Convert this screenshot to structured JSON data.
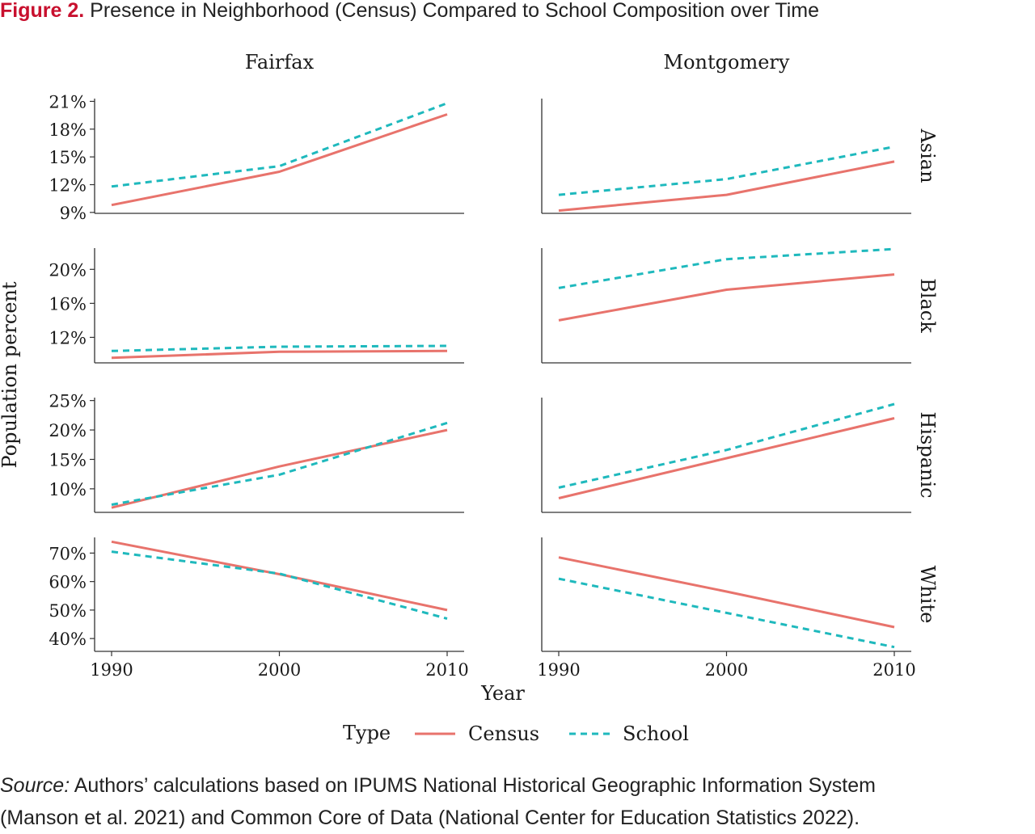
{
  "figure": {
    "label": "Figure 2.",
    "title": "Presence in Neighborhood (Census) Compared to School Composition over Time"
  },
  "source": {
    "label": "Source:",
    "line1": "Authors’ calculations based on IPUMS National Historical Geographic Information System",
    "line2": "(Manson et al. 2021) and Common Core of Data (National Center for Education Statistics 2022)."
  },
  "chart_data": {
    "type": "line",
    "ylabel": "Population percent",
    "xlabel": "Year",
    "x": [
      1990,
      2000,
      2010
    ],
    "x_tick_labels": [
      "1990",
      "2000",
      "2010"
    ],
    "columns": [
      "Fairfax",
      "Montgomery"
    ],
    "rows": [
      "Asian",
      "Black",
      "Hispanic",
      "White"
    ],
    "legend": {
      "title": "Type",
      "position": "bottom",
      "items": [
        {
          "name": "Census",
          "color": "#e8736c",
          "style": "solid"
        },
        {
          "name": "School",
          "color": "#1fb9bd",
          "style": "dashed"
        }
      ]
    },
    "grid": false,
    "panels": [
      {
        "row": "Asian",
        "ylim": [
          8.9,
          21.3
        ],
        "yticks": [
          9,
          12,
          15,
          18,
          21
        ],
        "ytick_labels": [
          "9%",
          "12%",
          "15%",
          "18%",
          "21%"
        ],
        "Fairfax": {
          "Census": [
            9.8,
            13.4,
            19.6
          ],
          "School": [
            11.8,
            14.0,
            20.8
          ]
        },
        "Montgomery": {
          "Census": [
            9.2,
            10.9,
            14.5
          ],
          "School": [
            10.9,
            12.6,
            16.1
          ]
        }
      },
      {
        "row": "Black",
        "ylim": [
          9.0,
          22.5
        ],
        "yticks": [
          12,
          16,
          20
        ],
        "ytick_labels": [
          "12%",
          "16%",
          "20%"
        ],
        "Fairfax": {
          "Census": [
            9.6,
            10.3,
            10.4
          ],
          "School": [
            10.4,
            10.9,
            11.0
          ]
        },
        "Montgomery": {
          "Census": [
            14.0,
            17.6,
            19.4
          ],
          "School": [
            17.8,
            21.2,
            22.4
          ]
        }
      },
      {
        "row": "Hispanic",
        "ylim": [
          6.0,
          25.5
        ],
        "yticks": [
          10,
          15,
          20,
          25
        ],
        "ytick_labels": [
          "10%",
          "15%",
          "20%",
          "25%"
        ],
        "Fairfax": {
          "Census": [
            6.8,
            13.8,
            20.0
          ],
          "School": [
            7.3,
            12.4,
            21.2
          ]
        },
        "Montgomery": {
          "Census": [
            8.4,
            15.2,
            22.0
          ],
          "School": [
            10.2,
            16.6,
            24.4
          ]
        }
      },
      {
        "row": "White",
        "ylim": [
          35.5,
          75.5
        ],
        "yticks": [
          40,
          50,
          60,
          70
        ],
        "ytick_labels": [
          "40%",
          "50%",
          "60%",
          "70%"
        ],
        "Fairfax": {
          "Census": [
            74.0,
            62.6,
            50.0
          ],
          "School": [
            70.5,
            62.8,
            47.0
          ]
        },
        "Montgomery": {
          "Census": [
            68.5,
            56.5,
            44.0
          ],
          "School": [
            61.0,
            49.0,
            37.0
          ]
        }
      }
    ]
  }
}
